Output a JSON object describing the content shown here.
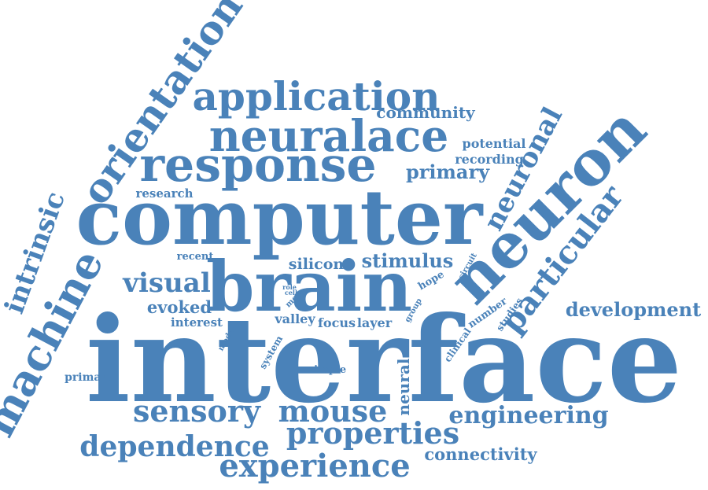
{
  "color": "#4a82b9",
  "words": [
    {
      "id": "interface",
      "text": "interface"
    },
    {
      "id": "computer",
      "text": "computer"
    },
    {
      "id": "brain",
      "text": "brain"
    },
    {
      "id": "neuron",
      "text": "neuron"
    },
    {
      "id": "response",
      "text": "response"
    },
    {
      "id": "neuralace",
      "text": "neuralace"
    },
    {
      "id": "application",
      "text": "application"
    },
    {
      "id": "orientation",
      "text": "orientation"
    },
    {
      "id": "machine",
      "text": "machine"
    },
    {
      "id": "intrinsic",
      "text": "intrinsic"
    },
    {
      "id": "particular",
      "text": "particular"
    },
    {
      "id": "neuronal",
      "text": "neuronal"
    },
    {
      "id": "visual",
      "text": "visual"
    },
    {
      "id": "sensory",
      "text": "sensory"
    },
    {
      "id": "mouse",
      "text": "mouse"
    },
    {
      "id": "properties",
      "text": "properties"
    },
    {
      "id": "dependence",
      "text": "dependence"
    },
    {
      "id": "experience",
      "text": "experience"
    },
    {
      "id": "engineering",
      "text": "engineering"
    },
    {
      "id": "development",
      "text": "development"
    },
    {
      "id": "primary",
      "text": "primary"
    },
    {
      "id": "community",
      "text": "community"
    },
    {
      "id": "potential",
      "text": "potential"
    },
    {
      "id": "recording",
      "text": "recording"
    },
    {
      "id": "research",
      "text": "research"
    },
    {
      "id": "stimulus",
      "text": "stimulus"
    },
    {
      "id": "silicon",
      "text": "silicon"
    },
    {
      "id": "evoked",
      "text": "evoked"
    },
    {
      "id": "interest",
      "text": "interest"
    },
    {
      "id": "valley",
      "text": "valley"
    },
    {
      "id": "focus",
      "text": "focus"
    },
    {
      "id": "layer",
      "text": "layer"
    },
    {
      "id": "neural",
      "text": "neural"
    },
    {
      "id": "connectivity",
      "text": "connectivity"
    },
    {
      "id": "primate",
      "text": "primate"
    },
    {
      "id": "simple",
      "text": "simple"
    },
    {
      "id": "recent",
      "text": "recent"
    },
    {
      "id": "system",
      "text": "system"
    },
    {
      "id": "model",
      "text": "model"
    },
    {
      "id": "more",
      "text": "more"
    },
    {
      "id": "cell",
      "text": "cell"
    },
    {
      "id": "role",
      "text": "role"
    },
    {
      "id": "hope",
      "text": "hope"
    },
    {
      "id": "circuit",
      "text": "circuit"
    },
    {
      "id": "group",
      "text": "group"
    },
    {
      "id": "number",
      "text": "number"
    },
    {
      "id": "clinical",
      "text": "clinical"
    },
    {
      "id": "studies",
      "text": "studies"
    }
  ]
}
